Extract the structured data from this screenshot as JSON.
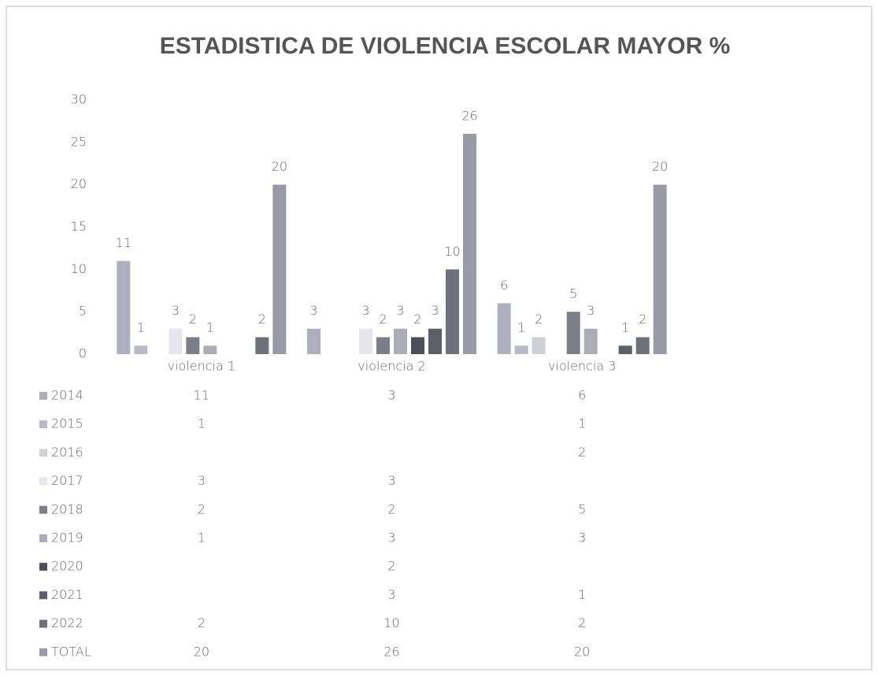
{
  "chart_data": {
    "type": "bar",
    "title": "ESTADISTICA DE VIOLENCIA ESCOLAR MAYOR %",
    "categories": [
      "violencia 1",
      "violencia 2",
      "violencia 3"
    ],
    "series": [
      {
        "name": "2014",
        "color": "#aeaebc",
        "values": [
          11,
          3,
          6
        ]
      },
      {
        "name": "2015",
        "color": "#b8b8c6",
        "values": [
          1,
          null,
          1
        ]
      },
      {
        "name": "2016",
        "color": "#cfcfd8",
        "values": [
          null,
          null,
          2
        ]
      },
      {
        "name": "2017",
        "color": "#e6e6ec",
        "values": [
          3,
          3,
          null
        ]
      },
      {
        "name": "2018",
        "color": "#7e7e88",
        "values": [
          2,
          2,
          5
        ]
      },
      {
        "name": "2019",
        "color": "#acacb6",
        "values": [
          1,
          3,
          3
        ]
      },
      {
        "name": "2020",
        "color": "#4e4e58",
        "values": [
          null,
          2,
          null
        ]
      },
      {
        "name": "2021",
        "color": "#5e5e68",
        "values": [
          null,
          3,
          1
        ]
      },
      {
        "name": "2022",
        "color": "#70707a",
        "values": [
          2,
          10,
          2
        ]
      },
      {
        "name": "TOTAL",
        "color": "#9a9aa6",
        "values": [
          20,
          26,
          20
        ]
      }
    ],
    "ylim": [
      0,
      30
    ],
    "yticks": [
      0,
      5,
      10,
      15,
      20,
      25,
      30
    ]
  }
}
